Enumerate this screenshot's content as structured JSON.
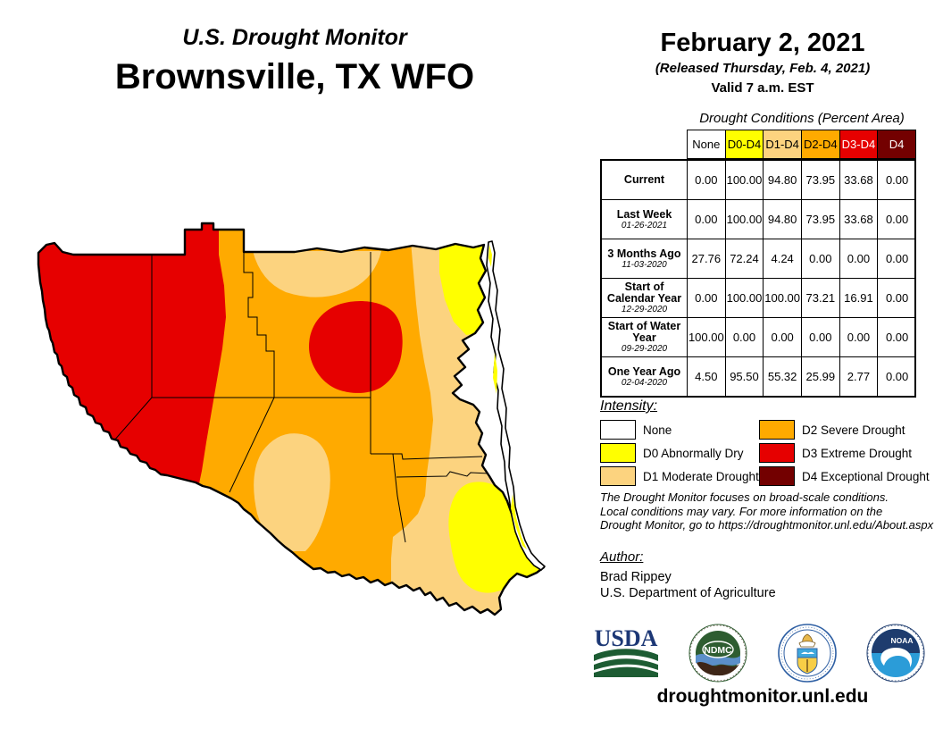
{
  "header": {
    "supertitle": "U.S. Drought Monitor",
    "title": "Brownsville, TX WFO",
    "date": "February 2, 2021",
    "released": "(Released Thursday, Feb. 4, 2021)",
    "valid": "Valid 7 a.m. EST"
  },
  "table": {
    "caption": "Drought Conditions (Percent Area)",
    "columns": [
      {
        "label": "None",
        "bg": "#FFFFFF",
        "fg": "#000000"
      },
      {
        "label": "D0-D4",
        "bg": "#FFFF00",
        "fg": "#000000"
      },
      {
        "label": "D1-D4",
        "bg": "#FCD37F",
        "fg": "#000000"
      },
      {
        "label": "D2-D4",
        "bg": "#FFAA00",
        "fg": "#000000"
      },
      {
        "label": "D3-D4",
        "bg": "#E60000",
        "fg": "#FFFFFF"
      },
      {
        "label": "D4",
        "bg": "#730000",
        "fg": "#FFFFFF"
      }
    ],
    "rows": [
      {
        "label": "Current",
        "date": "",
        "values": [
          "0.00",
          "100.00",
          "94.80",
          "73.95",
          "33.68",
          "0.00"
        ]
      },
      {
        "label": "Last Week",
        "date": "01-26-2021",
        "values": [
          "0.00",
          "100.00",
          "94.80",
          "73.95",
          "33.68",
          "0.00"
        ]
      },
      {
        "label": "3 Months Ago",
        "date": "11-03-2020",
        "values": [
          "27.76",
          "72.24",
          "4.24",
          "0.00",
          "0.00",
          "0.00"
        ]
      },
      {
        "label": "Start of Calendar Year",
        "date": "12-29-2020",
        "values": [
          "0.00",
          "100.00",
          "100.00",
          "73.21",
          "16.91",
          "0.00"
        ]
      },
      {
        "label": "Start of Water Year",
        "date": "09-29-2020",
        "values": [
          "100.00",
          "0.00",
          "0.00",
          "0.00",
          "0.00",
          "0.00"
        ]
      },
      {
        "label": "One Year Ago",
        "date": "02-04-2020",
        "values": [
          "4.50",
          "95.50",
          "55.32",
          "25.99",
          "2.77",
          "0.00"
        ]
      }
    ]
  },
  "legend": {
    "heading": "Intensity:",
    "items": [
      {
        "label": "None",
        "color": "#FFFFFF"
      },
      {
        "label": "D0 Abnormally Dry",
        "color": "#FFFF00"
      },
      {
        "label": "D1 Moderate Drought",
        "color": "#FCD37F"
      },
      {
        "label": "D2 Severe Drought",
        "color": "#FFAA00"
      },
      {
        "label": "D3 Extreme Drought",
        "color": "#E60000"
      },
      {
        "label": "D4 Exceptional Drought",
        "color": "#730000"
      }
    ]
  },
  "disclaimer": {
    "lines": [
      "The Drought Monitor focuses on broad-scale conditions.",
      "Local conditions may vary. For more information on the",
      "Drought Monitor, go to https://droughtmonitor.unl.edu/About.aspx"
    ]
  },
  "author": {
    "heading": "Author:",
    "name": "Brad Rippey",
    "org": "U.S. Department of Agriculture"
  },
  "footer": {
    "url": "droughtmonitor.unl.edu"
  },
  "logos": {
    "usda": "USDA",
    "ndmc": "NDMC",
    "noaa": "NOAA"
  },
  "map": {
    "colors": {
      "none": "#FFFFFF",
      "d0": "#FFFF00",
      "d1": "#FCD37F",
      "d2": "#FFAA00",
      "d3": "#E60000",
      "d4": "#730000",
      "border": "#000000"
    }
  }
}
